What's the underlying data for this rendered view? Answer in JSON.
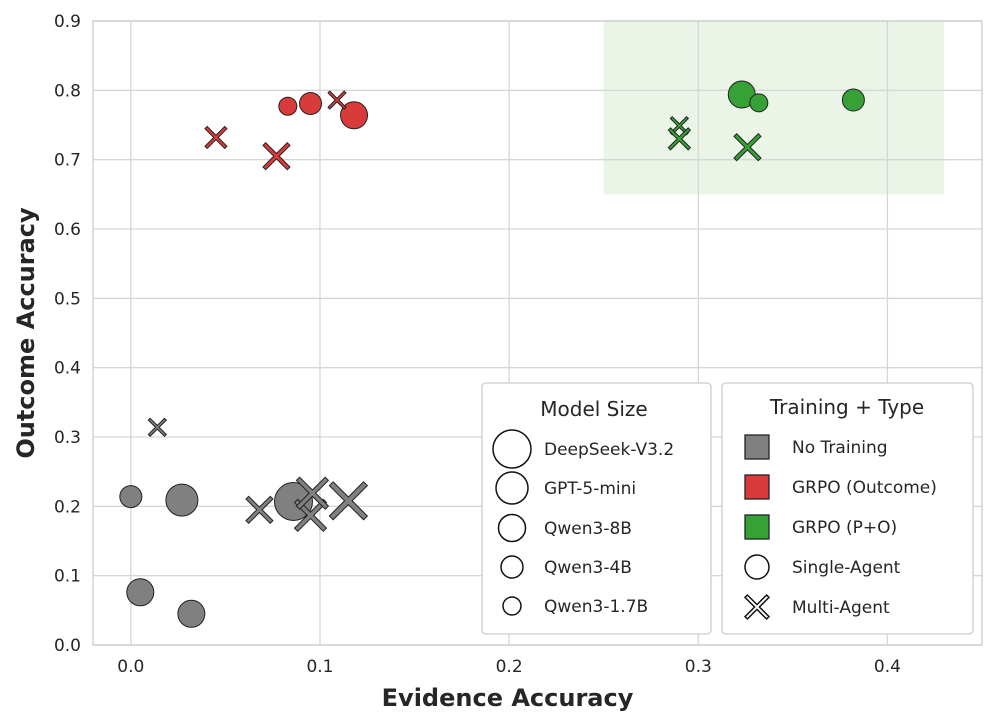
{
  "chart_data": {
    "type": "scatter",
    "title": "",
    "xlabel": "Evidence Accuracy",
    "ylabel": "Outcome Accuracy",
    "xlim": [
      -0.02,
      0.45
    ],
    "ylim": [
      0.0,
      0.9
    ],
    "xticks": [
      "0.0",
      "0.1",
      "0.2",
      "0.3",
      "0.4"
    ],
    "yticks": [
      "0.0",
      "0.1",
      "0.2",
      "0.3",
      "0.4",
      "0.5",
      "0.6",
      "0.7",
      "0.8",
      "0.9"
    ],
    "xtick_values": [
      0.0,
      0.1,
      0.2,
      0.3,
      0.4
    ],
    "ytick_values": [
      0.0,
      0.1,
      0.2,
      0.3,
      0.4,
      0.5,
      0.6,
      0.7,
      0.8,
      0.9
    ],
    "grid": true,
    "highlight_region": {
      "x": [
        0.25,
        0.43
      ],
      "y": [
        0.65,
        0.9
      ],
      "color": "#eaf5e7"
    },
    "colors": {
      "No Training": "#808080",
      "GRPO (Outcome)": "#d93a3a",
      "GRPO (P+O)": "#36a236"
    },
    "points": [
      {
        "x": 0.0,
        "y": 0.214,
        "training": "No Training",
        "type": "Single-Agent",
        "size": "Qwen3-4B"
      },
      {
        "x": 0.027,
        "y": 0.209,
        "training": "No Training",
        "type": "Single-Agent",
        "size": "GPT-5-mini"
      },
      {
        "x": 0.005,
        "y": 0.076,
        "training": "No Training",
        "type": "Single-Agent",
        "size": "Qwen3-8B"
      },
      {
        "x": 0.032,
        "y": 0.045,
        "training": "No Training",
        "type": "Single-Agent",
        "size": "Qwen3-8B"
      },
      {
        "x": 0.086,
        "y": 0.207,
        "training": "No Training",
        "type": "Single-Agent",
        "size": "DeepSeek-V3.2"
      },
      {
        "x": 0.014,
        "y": 0.314,
        "training": "No Training",
        "type": "Multi-Agent",
        "size": "Qwen3-1.7B"
      },
      {
        "x": 0.068,
        "y": 0.195,
        "training": "No Training",
        "type": "Multi-Agent",
        "size": "Qwen3-8B"
      },
      {
        "x": 0.095,
        "y": 0.187,
        "training": "No Training",
        "type": "Multi-Agent",
        "size": "GPT-5-mini"
      },
      {
        "x": 0.096,
        "y": 0.219,
        "training": "No Training",
        "type": "Multi-Agent",
        "size": "GPT-5-mini"
      },
      {
        "x": 0.115,
        "y": 0.208,
        "training": "No Training",
        "type": "Multi-Agent",
        "size": "DeepSeek-V3.2"
      },
      {
        "x": 0.083,
        "y": 0.777,
        "training": "GRPO (Outcome)",
        "type": "Single-Agent",
        "size": "Qwen3-1.7B"
      },
      {
        "x": 0.095,
        "y": 0.781,
        "training": "GRPO (Outcome)",
        "type": "Single-Agent",
        "size": "Qwen3-4B"
      },
      {
        "x": 0.118,
        "y": 0.764,
        "training": "GRPO (Outcome)",
        "type": "Single-Agent",
        "size": "Qwen3-8B"
      },
      {
        "x": 0.045,
        "y": 0.732,
        "training": "GRPO (Outcome)",
        "type": "Multi-Agent",
        "size": "Qwen3-4B"
      },
      {
        "x": 0.077,
        "y": 0.705,
        "training": "GRPO (Outcome)",
        "type": "Multi-Agent",
        "size": "Qwen3-8B"
      },
      {
        "x": 0.109,
        "y": 0.786,
        "training": "GRPO (Outcome)",
        "type": "Multi-Agent",
        "size": "Qwen3-1.7B"
      },
      {
        "x": 0.323,
        "y": 0.794,
        "training": "GRPO (P+O)",
        "type": "Single-Agent",
        "size": "Qwen3-8B"
      },
      {
        "x": 0.332,
        "y": 0.782,
        "training": "GRPO (P+O)",
        "type": "Single-Agent",
        "size": "Qwen3-1.7B"
      },
      {
        "x": 0.382,
        "y": 0.786,
        "training": "GRPO (P+O)",
        "type": "Single-Agent",
        "size": "Qwen3-4B"
      },
      {
        "x": 0.29,
        "y": 0.749,
        "training": "GRPO (P+O)",
        "type": "Multi-Agent",
        "size": "Qwen3-1.7B"
      },
      {
        "x": 0.29,
        "y": 0.73,
        "training": "GRPO (P+O)",
        "type": "Multi-Agent",
        "size": "Qwen3-4B"
      },
      {
        "x": 0.326,
        "y": 0.718,
        "training": "GRPO (P+O)",
        "type": "Multi-Agent",
        "size": "Qwen3-8B"
      }
    ],
    "legend_size": {
      "title": "Model Size",
      "placement": "bottom-right",
      "entries": [
        "DeepSeek-V3.2",
        "GPT-5-mini",
        "Qwen3-8B",
        "Qwen3-4B",
        "Qwen3-1.7B"
      ]
    },
    "legend_type": {
      "title": "Training + Type",
      "placement": "bottom-right",
      "entries": [
        {
          "label": "No Training",
          "marker": "square",
          "color": "#808080"
        },
        {
          "label": "GRPO (Outcome)",
          "marker": "square",
          "color": "#d93a3a"
        },
        {
          "label": "GRPO (P+O)",
          "marker": "square",
          "color": "#36a236"
        },
        {
          "label": "Single-Agent",
          "marker": "circle",
          "color": "#ffffff"
        },
        {
          "label": "Multi-Agent",
          "marker": "x",
          "color": "#ffffff"
        }
      ]
    }
  }
}
